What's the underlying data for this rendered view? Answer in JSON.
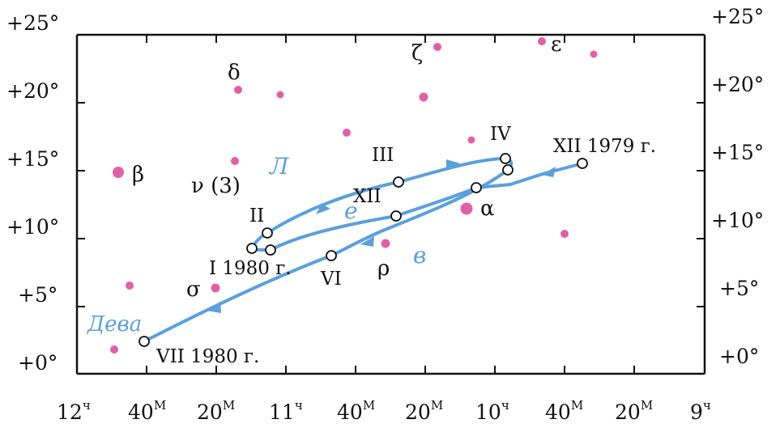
{
  "y_ticks_left": [
    "+25°",
    "+20°",
    "+15°",
    "+10°",
    "+5°",
    "+0°"
  ],
  "y_ticks_right": [
    "+25°",
    "+20°",
    "+15°",
    "+10°",
    "+5°",
    "+0°"
  ],
  "x_ticks": [
    {
      "main": "12",
      "sup": "ч"
    },
    {
      "main": "40",
      "sup": "М"
    },
    {
      "main": "20",
      "sup": "М"
    },
    {
      "main": "11",
      "sup": "ч"
    },
    {
      "main": "40",
      "sup": "М"
    },
    {
      "main": "20",
      "sup": "М"
    },
    {
      "main": "10",
      "sup": "ч"
    },
    {
      "main": "40",
      "sup": "М"
    },
    {
      "main": "20",
      "sup": "М"
    },
    {
      "main": "9",
      "sup": "ч"
    }
  ],
  "stars": {
    "delta": "δ",
    "zeta": "ζ",
    "epsilon": "ε",
    "beta": "β",
    "nu": "ν (3)",
    "alpha": "α",
    "rho": "ρ",
    "sigma": "σ"
  },
  "constellation_label": "Дева",
  "path_letters": [
    "Л",
    "е",
    "в"
  ],
  "path_points": {
    "xii_1979": "XII 1979 г.",
    "i_1980": "I 1980 г.",
    "ii": "II",
    "iii": "III",
    "iv": "IV",
    "vi": "VI",
    "vii_1980": "VII 1980 г.",
    "xii": "XII"
  },
  "colors": {
    "path": "#5aa0dc",
    "star": "#e060a8",
    "axis": "#111111"
  }
}
